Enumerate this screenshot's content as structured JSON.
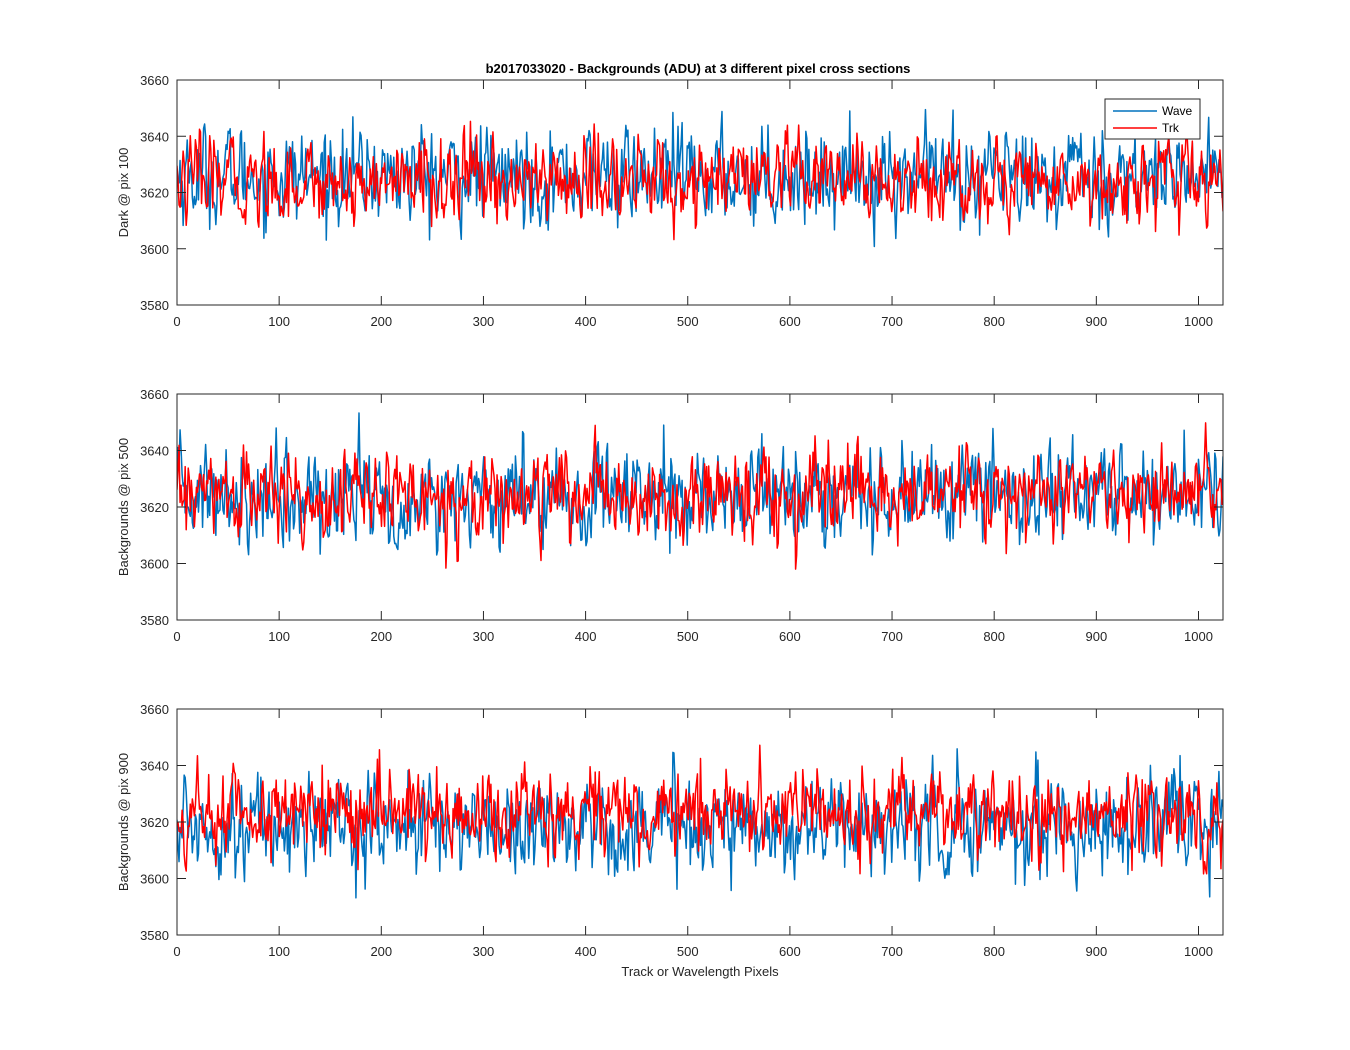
{
  "title": "b2017033020 - Backgrounds (ADU) at 3 different pixel cross sections",
  "colors": {
    "wave": "#0072bd",
    "trk": "#ff0000",
    "axis": "#262626"
  },
  "chart_data": [
    {
      "type": "line",
      "title": "b2017033020 - Backgrounds (ADU) at 3 different pixel cross sections",
      "xlabel": "",
      "ylabel": "Dark @ pix 100",
      "xlim": [
        0,
        1024
      ],
      "ylim": [
        3580,
        3660
      ],
      "xticks": [
        0,
        100,
        200,
        300,
        400,
        500,
        600,
        700,
        800,
        900,
        1000
      ],
      "yticks": [
        3580,
        3600,
        3620,
        3640,
        3660
      ],
      "grid": false,
      "legend": "top-right",
      "series": [
        {
          "name": "Wave",
          "points": 1024,
          "mean": 3626,
          "noise_std": 8,
          "min": 3600,
          "max": 3656
        },
        {
          "name": "Trk",
          "points": 1024,
          "mean": 3624,
          "noise_std": 7,
          "min": 3600,
          "max": 3646
        }
      ]
    },
    {
      "type": "line",
      "xlabel": "",
      "ylabel": "Backgrounds @ pix 500",
      "xlim": [
        0,
        1024
      ],
      "ylim": [
        3580,
        3660
      ],
      "xticks": [
        0,
        100,
        200,
        300,
        400,
        500,
        600,
        700,
        800,
        900,
        1000
      ],
      "yticks": [
        3580,
        3600,
        3620,
        3640,
        3660
      ],
      "grid": false,
      "series": [
        {
          "name": "Wave",
          "points": 1024,
          "mean": 3625,
          "noise_std": 8,
          "min": 3603,
          "max": 3654
        },
        {
          "name": "Trk",
          "points": 1024,
          "mean": 3624,
          "noise_std": 7,
          "min": 3598,
          "max": 3650
        }
      ]
    },
    {
      "type": "line",
      "xlabel": "Track or Wavelength Pixels",
      "ylabel": "Backgrounds @ pix 900",
      "xlim": [
        0,
        1024
      ],
      "ylim": [
        3580,
        3660
      ],
      "xticks": [
        0,
        100,
        200,
        300,
        400,
        500,
        600,
        700,
        800,
        900,
        1000
      ],
      "yticks": [
        3580,
        3600,
        3620,
        3640,
        3660
      ],
      "grid": false,
      "series": [
        {
          "name": "Wave",
          "points": 1024,
          "mean": 3619,
          "noise_std": 8,
          "min": 3593,
          "max": 3652
        },
        {
          "name": "Trk",
          "points": 1024,
          "mean": 3623,
          "noise_std": 7,
          "min": 3601,
          "max": 3652
        }
      ]
    }
  ]
}
